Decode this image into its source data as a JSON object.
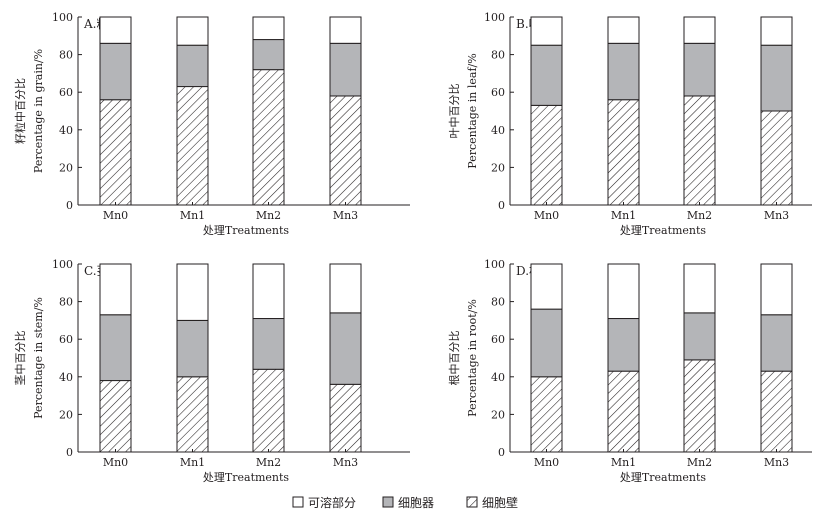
{
  "chart_data": [
    {
      "type": "bar",
      "stacked": true,
      "title": "A.籽粒",
      "ylabel_cn": "籽粒中百分比",
      "ylabel_en": "Percentage in grain/%",
      "xlabel": "处理Treatments",
      "categories": [
        "Mn0",
        "Mn1",
        "Mn2",
        "Mn3"
      ],
      "ylim": [
        0,
        100
      ],
      "yticks": [
        "0",
        "20",
        "40",
        "60",
        "80",
        "100"
      ],
      "series": [
        {
          "name": "细胞壁",
          "values": [
            56,
            63,
            72,
            58
          ]
        },
        {
          "name": "细胞器",
          "values": [
            30,
            22,
            16,
            28
          ]
        },
        {
          "name": "可溶部分",
          "values": [
            14,
            15,
            12,
            14
          ]
        }
      ]
    },
    {
      "type": "bar",
      "stacked": true,
      "title": "B.叶",
      "ylabel_cn": "叶中百分比",
      "ylabel_en": "Percentage in leaf/%",
      "xlabel": "处理Treatments",
      "categories": [
        "Mn0",
        "Mn1",
        "Mn2",
        "Mn3"
      ],
      "ylim": [
        0,
        100
      ],
      "yticks": [
        "0",
        "20",
        "40",
        "60",
        "80",
        "100"
      ],
      "series": [
        {
          "name": "细胞壁",
          "values": [
            53,
            56,
            58,
            50
          ]
        },
        {
          "name": "细胞器",
          "values": [
            32,
            30,
            28,
            35
          ]
        },
        {
          "name": "可溶部分",
          "values": [
            15,
            14,
            14,
            15
          ]
        }
      ]
    },
    {
      "type": "bar",
      "stacked": true,
      "title": "C.茎",
      "ylabel_cn": "茎中百分比",
      "ylabel_en": "Percentage in stem/%",
      "xlabel": "处理Treatments",
      "categories": [
        "Mn0",
        "Mn1",
        "Mn2",
        "Mn3"
      ],
      "ylim": [
        0,
        100
      ],
      "yticks": [
        "0",
        "20",
        "40",
        "60",
        "80",
        "100"
      ],
      "series": [
        {
          "name": "细胞壁",
          "values": [
            38,
            40,
            44,
            36
          ]
        },
        {
          "name": "细胞器",
          "values": [
            35,
            30,
            27,
            38
          ]
        },
        {
          "name": "可溶部分",
          "values": [
            27,
            30,
            29,
            26
          ]
        }
      ]
    },
    {
      "type": "bar",
      "stacked": true,
      "title": "D.根",
      "ylabel_cn": "根中百分比",
      "ylabel_en": "Percentage in root/%",
      "xlabel": "处理Treatments",
      "categories": [
        "Mn0",
        "Mn1",
        "Mn2",
        "Mn3"
      ],
      "ylim": [
        0,
        100
      ],
      "yticks": [
        "0",
        "20",
        "40",
        "60",
        "80",
        "100"
      ],
      "series": [
        {
          "name": "细胞壁",
          "values": [
            40,
            43,
            49,
            43
          ]
        },
        {
          "name": "细胞器",
          "values": [
            36,
            28,
            25,
            30
          ]
        },
        {
          "name": "可溶部分",
          "values": [
            24,
            29,
            26,
            27
          ]
        }
      ]
    }
  ],
  "legend": {
    "position": "bottom-center",
    "items": [
      {
        "label": "可溶部分",
        "fill": "white"
      },
      {
        "label": "细胞器",
        "fill": "gray"
      },
      {
        "label": "细胞壁",
        "fill": "hatch"
      }
    ]
  },
  "colors": {
    "soluble": "#ffffff",
    "organelle": "#b4b5b8",
    "wall": "#ffffff",
    "stroke": "#231f20"
  }
}
